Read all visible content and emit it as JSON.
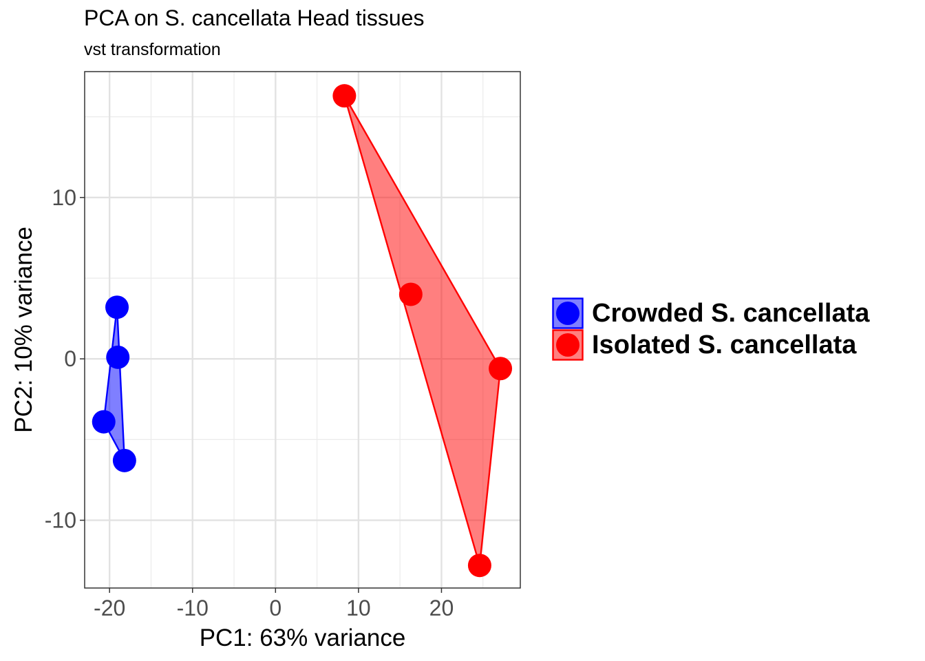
{
  "chart_data": {
    "type": "scatter",
    "title": "PCA on S. cancellata Head tissues",
    "subtitle": "vst transformation",
    "xlabel": "PC1: 63% variance",
    "ylabel": "PC2: 10% variance",
    "xlim": [
      -23,
      29.5
    ],
    "ylim": [
      -14.2,
      17.8
    ],
    "xticks": [
      -20,
      -10,
      0,
      10,
      20
    ],
    "xtick_labels": [
      "-20",
      "-10",
      "0",
      "10",
      "20"
    ],
    "yticks": [
      -10,
      0,
      10
    ],
    "ytick_labels": [
      "-10",
      "0",
      "10"
    ],
    "grid": true,
    "legend_position": "right",
    "series": [
      {
        "name": "Crowded S. cancellata",
        "color": "#0000ff",
        "points": [
          {
            "x": -19.1,
            "y": 3.2
          },
          {
            "x": -19.0,
            "y": 0.1
          },
          {
            "x": -20.7,
            "y": -3.9
          },
          {
            "x": -18.2,
            "y": -6.3
          }
        ],
        "hull": [
          [
            -19.1,
            3.2
          ],
          [
            -18.2,
            -6.3
          ],
          [
            -20.7,
            -3.9
          ]
        ]
      },
      {
        "name": "Isolated S. cancellata",
        "color": "#ff0000",
        "points": [
          {
            "x": 8.3,
            "y": 16.3
          },
          {
            "x": 16.3,
            "y": 4.0
          },
          {
            "x": 27.1,
            "y": -0.6
          },
          {
            "x": 24.6,
            "y": -12.8
          }
        ],
        "hull": [
          [
            8.3,
            16.3
          ],
          [
            27.1,
            -0.6
          ],
          [
            24.6,
            -12.8
          ]
        ]
      }
    ]
  }
}
